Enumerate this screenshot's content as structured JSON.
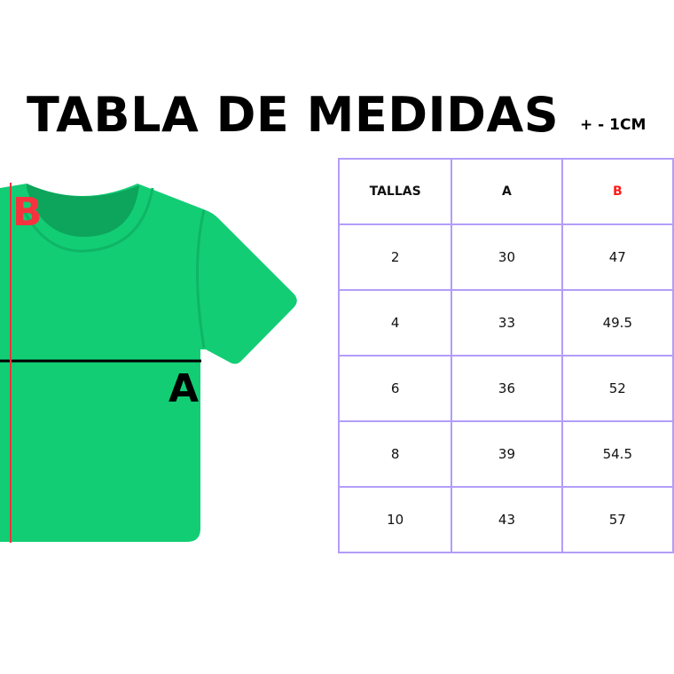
{
  "title": "TABLA DE MEDIDAS",
  "tolerance": "+ - 1CM",
  "diagram": {
    "label_a": "A",
    "label_b": "B",
    "shirt_color": "#12cd74",
    "measure_b_color": "#f5333f",
    "measure_a_color": "#000000"
  },
  "table": {
    "headers": [
      "TALLAS",
      "A",
      "B"
    ],
    "header_colors": [
      "#111111",
      "#111111",
      "#ff1a1a"
    ],
    "border_color": "#b39dfa",
    "rows": [
      [
        "2",
        "30",
        "47"
      ],
      [
        "4",
        "33",
        "49.5"
      ],
      [
        "6",
        "36",
        "52"
      ],
      [
        "8",
        "39",
        "54.5"
      ],
      [
        "10",
        "43",
        "57"
      ]
    ]
  }
}
